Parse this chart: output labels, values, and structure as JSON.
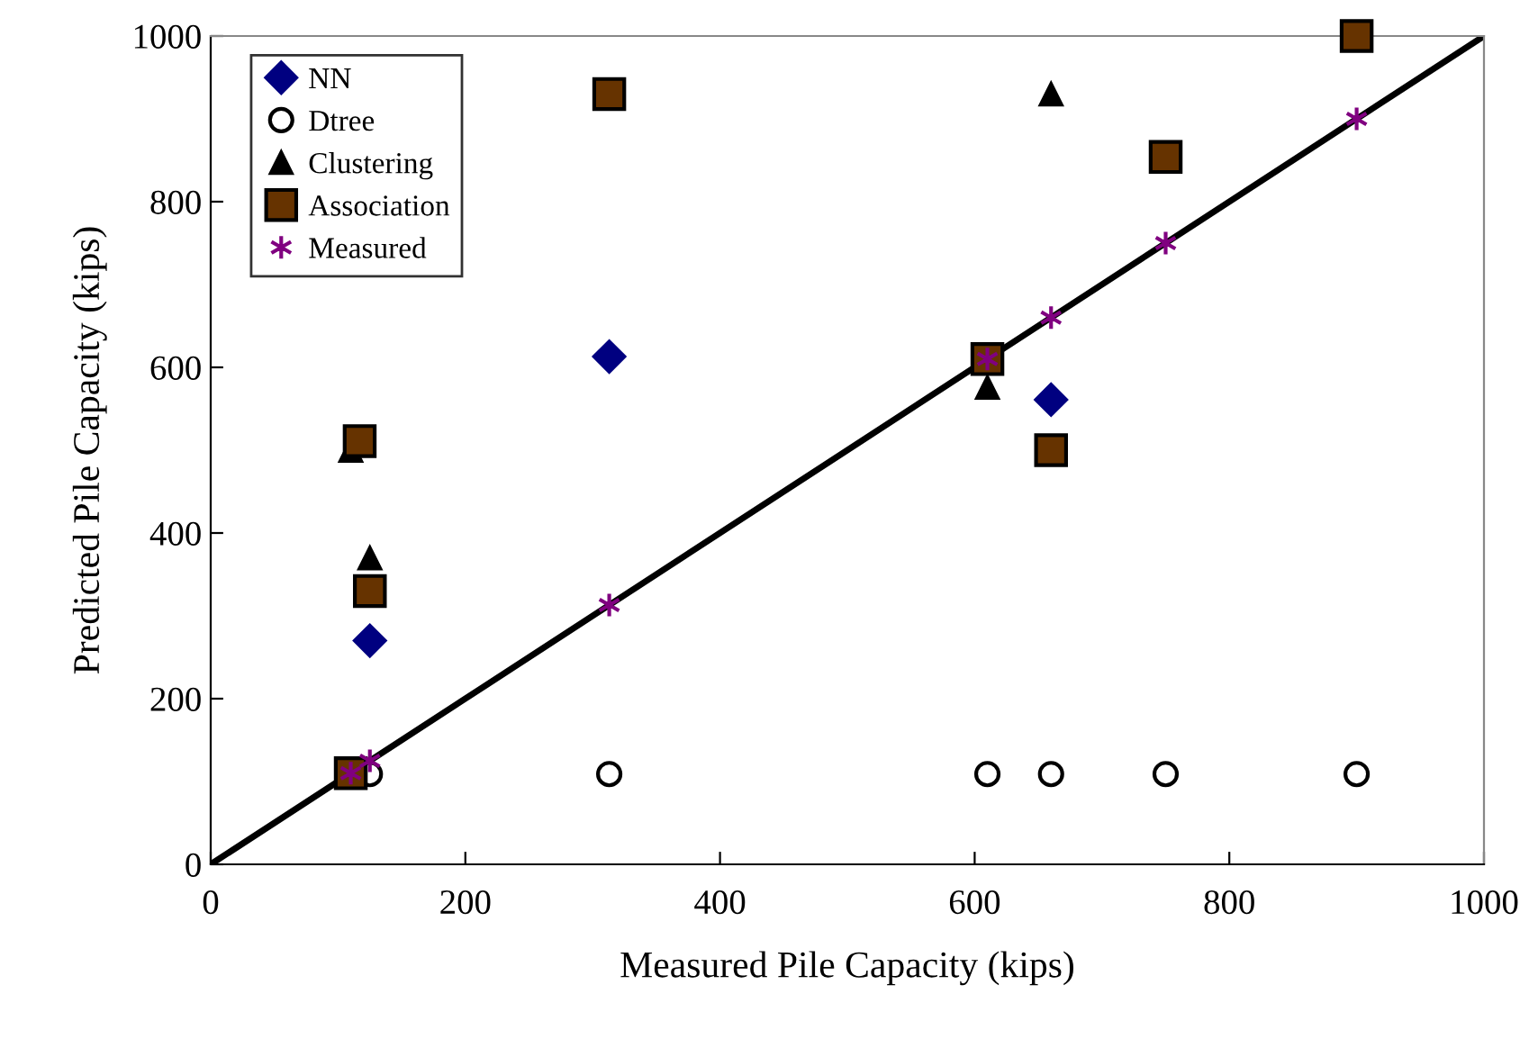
{
  "chart_data": {
    "type": "scatter",
    "xlabel": "Measured Pile Capacity (kips)",
    "ylabel": "Predicted Pile Capacity (kips)",
    "xlim": [
      0,
      1000
    ],
    "ylim": [
      0,
      1000
    ],
    "xticks": [
      0,
      200,
      400,
      600,
      800,
      1000
    ],
    "yticks": [
      0,
      200,
      400,
      600,
      800,
      1000
    ],
    "grid": false,
    "legend": "top left",
    "series": [
      {
        "name": "NN",
        "color": "#000080",
        "marker": "diamond",
        "x": [
          125,
          313,
          660
        ],
        "values": [
          270,
          613,
          561
        ]
      },
      {
        "name": "Dtree",
        "color": "#000000",
        "marker": "circle",
        "x": [
          125,
          313,
          610,
          660,
          750,
          900
        ],
        "values": [
          109,
          109,
          109,
          109,
          109,
          109
        ]
      },
      {
        "name": "Clustering",
        "color": "#000000",
        "marker": "triangle",
        "x": [
          110,
          125,
          610,
          660
        ],
        "values": [
          500,
          370,
          576,
          930
        ]
      },
      {
        "name": "Association",
        "color": "#663300",
        "marker": "square",
        "x": [
          110,
          117,
          125,
          313,
          610,
          660,
          750,
          900
        ],
        "values": [
          110,
          511,
          330,
          930,
          610,
          500,
          854,
          1000
        ]
      },
      {
        "name": "Measured",
        "color": "#800080",
        "marker": "cross",
        "x": [
          110,
          125,
          313,
          610,
          660,
          750,
          900
        ],
        "values": [
          110,
          125,
          313,
          610,
          660,
          750,
          900
        ]
      },
      {
        "type": "line",
        "color": "#000000",
        "marker": "none",
        "line_style": "solid",
        "x": [
          0,
          1000
        ],
        "values": [
          0,
          1000
        ]
      }
    ]
  }
}
